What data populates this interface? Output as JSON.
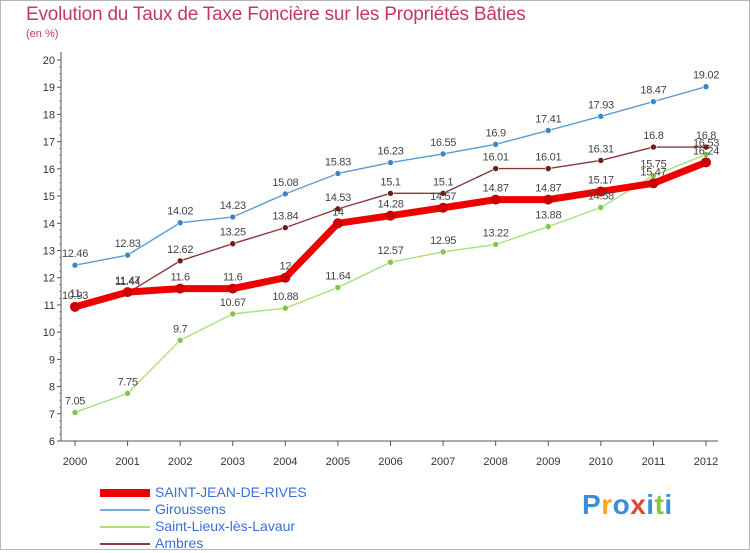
{
  "title": "Evolution du Taux de Taxe Foncière sur les Propriétés Bâties",
  "unit_label": "(en %)",
  "chart_data": {
    "type": "line",
    "title": "Evolution du Taux de Taxe Foncière sur les Propriétés Bâties",
    "ylabel": "(en %)",
    "xlabel": "",
    "ylim": [
      6,
      20
    ],
    "grid": false,
    "categories": [
      "2000",
      "2001",
      "2002",
      "2003",
      "2004",
      "2005",
      "2006",
      "2007",
      "2008",
      "2009",
      "2010",
      "2011",
      "2012"
    ],
    "yticks": [
      "6",
      "7",
      "8",
      "9",
      "10",
      "11",
      "12",
      "13",
      "14",
      "15",
      "16",
      "17",
      "18",
      "19",
      "20"
    ],
    "series": [
      {
        "name": "Giroussens",
        "color": "#5b9bd5",
        "marker": "#3a86c8",
        "values": [
          12.46,
          12.83,
          14.02,
          14.23,
          15.08,
          15.83,
          16.23,
          16.55,
          16.9,
          17.41,
          17.93,
          18.47,
          19.02
        ],
        "labels": [
          "12.46",
          "12.83",
          "14.02",
          "14.23",
          "15.08",
          "15.83",
          "16.23",
          "16.55",
          "16.9",
          "17.41",
          "17.93",
          "18.47",
          "19.02"
        ]
      },
      {
        "name": "Saint-Lieux-lès-Lavaur",
        "color": "#a9e07a",
        "marker": "#7dc84a",
        "values": [
          7.05,
          7.75,
          9.7,
          10.67,
          10.88,
          11.64,
          12.57,
          12.95,
          13.22,
          13.88,
          14.58,
          15.75,
          16.53
        ],
        "labels": [
          "7.05",
          "7.75",
          "9.7",
          "10.67",
          "10.88",
          "11.64",
          "12.57",
          "12.95",
          "13.22",
          "13.88",
          "14.58",
          "15.75",
          "16.53"
        ]
      },
      {
        "name": "Ambres",
        "color": "#8a3a3a",
        "marker": "#6a1e1e",
        "values": [
          11,
          11.44,
          12.62,
          13.25,
          13.84,
          14.53,
          15.1,
          15.1,
          16.01,
          16.01,
          16.31,
          16.8,
          16.8
        ],
        "labels": [
          "11",
          "11.44",
          "12.62",
          "13.25",
          "13.84",
          "14.53",
          "15.1",
          "15.1",
          "16.01",
          "16.01",
          "16.31",
          "16.8",
          "16.8"
        ]
      },
      {
        "name": "SAINT-JEAN-DE-RIVES",
        "color": "#ee0000",
        "marker": "#cc0000",
        "values": [
          10.93,
          11.47,
          11.6,
          11.6,
          12,
          14,
          14.28,
          14.57,
          14.87,
          14.87,
          15.17,
          15.47,
          16.24
        ],
        "labels": [
          "10.93",
          "11.47",
          "11.6",
          "11.6",
          "12",
          "14",
          "14.28",
          "14.57",
          "14.87",
          "14.87",
          "15.17",
          "15.47",
          "16.24"
        ]
      }
    ],
    "legend": [
      "SAINT-JEAN-DE-RIVES",
      "Giroussens",
      "Saint-Lieux-lès-Lavaur",
      "Ambres"
    ],
    "legend_colors": [
      "#ee0000",
      "#7aaad6",
      "#a9e07a",
      "#8a3a3a"
    ],
    "legend_text_color": "#3b6fd6",
    "legend_position": "bottom-left"
  },
  "logo": {
    "letters": [
      "P",
      "r",
      "o",
      "x",
      "i",
      "t",
      "i"
    ],
    "colors": [
      "#3a8fd8",
      "#f5a623",
      "#3a8fd8",
      "#e0453a",
      "#3a8fd8",
      "#8cc63f",
      "#3a8fd8"
    ]
  }
}
